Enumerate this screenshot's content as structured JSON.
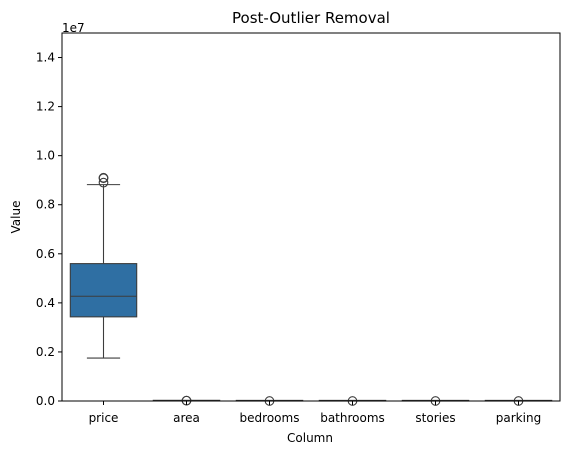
{
  "chart_data": {
    "type": "box",
    "title": "Post-Outlier Removal",
    "xlabel": "Column",
    "ylabel": "Value",
    "y_offset_label": "1e7",
    "ylim": [
      0,
      1.5
    ],
    "yticks": [
      0.0,
      0.2,
      0.4,
      0.6,
      0.8,
      1.0,
      1.2,
      1.4
    ],
    "ytick_labels": [
      "0.0",
      "0.2",
      "0.4",
      "0.6",
      "0.8",
      "1.0",
      "1.2",
      "1.4"
    ],
    "categories": [
      "price",
      "area",
      "bedrooms",
      "bathrooms",
      "stories",
      "parking"
    ],
    "box_color": "#2f6fa3",
    "line_color": "#3d3d3d",
    "boxes": [
      {
        "name": "price",
        "whisker_low": 0.175,
        "q1": 0.343,
        "median": 0.427,
        "q3": 0.56,
        "whisker_high": 0.882,
        "fliers": [
          0.89,
          0.908,
          0.91
        ]
      },
      {
        "name": "area",
        "whisker_low": 0.0002,
        "q1": 0.0003,
        "median": 0.0005,
        "q3": 0.0006,
        "whisker_high": 0.0012,
        "fliers": [
          0.0013,
          0.0015
        ]
      },
      {
        "name": "bedrooms",
        "whisker_low": 0.0,
        "q1": 0.0,
        "median": 0.0,
        "q3": 0.0,
        "whisker_high": 0.0,
        "fliers": [
          0.0
        ]
      },
      {
        "name": "bathrooms",
        "whisker_low": 0.0,
        "q1": 0.0,
        "median": 0.0,
        "q3": 0.0,
        "whisker_high": 0.0,
        "fliers": [
          0.0
        ]
      },
      {
        "name": "stories",
        "whisker_low": 0.0,
        "q1": 0.0,
        "median": 0.0,
        "q3": 0.0,
        "whisker_high": 0.0,
        "fliers": [
          0.0
        ]
      },
      {
        "name": "parking",
        "whisker_low": 0.0,
        "q1": 0.0,
        "median": 0.0,
        "q3": 0.0,
        "whisker_high": 0.0,
        "fliers": [
          0.0
        ]
      }
    ]
  }
}
